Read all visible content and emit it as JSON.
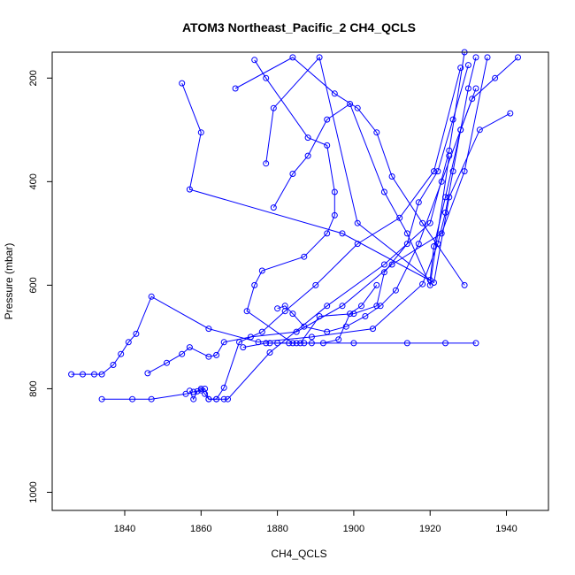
{
  "chart_data": {
    "type": "line",
    "title": "ATOM3 Northeast_Pacific_2 CH4_QCLS",
    "xlabel": "CH4_QCLS",
    "ylabel": "Pressure (mbar)",
    "xlim": [
      1821,
      1951
    ],
    "ylim": [
      1035,
      150
    ],
    "y_reversed": true,
    "x_ticks": [
      1840,
      1860,
      1880,
      1900,
      1920,
      1940
    ],
    "y_ticks": [
      200,
      400,
      600,
      800,
      1000
    ],
    "series_color": "#0000ff",
    "series": [
      {
        "x": [
          1826,
          1829,
          1832,
          1834,
          1837,
          1839,
          1841,
          1843,
          1847,
          1862,
          1875,
          1889,
          1905,
          1918,
          1922,
          1924,
          1926,
          1928,
          1930,
          1932
        ],
        "y": [
          772,
          772,
          772,
          772,
          754,
          733,
          710,
          694,
          622,
          684,
          710,
          700,
          684,
          598,
          520,
          460,
          380,
          300,
          220,
          160
        ]
      },
      {
        "x": [
          1834,
          1842,
          1847,
          1856,
          1858,
          1860,
          1861,
          1862,
          1864,
          1866,
          1867,
          1878,
          1893,
          1908,
          1920,
          1925,
          1929
        ],
        "y": [
          820,
          820,
          820,
          810,
          806,
          803,
          800,
          820,
          820,
          820,
          820,
          730,
          640,
          560,
          480,
          340,
          150
        ]
      },
      {
        "x": [
          1846,
          1851,
          1855,
          1857,
          1862,
          1864,
          1866,
          1873,
          1885,
          1897,
          1910,
          1923,
          1929,
          1935
        ],
        "y": [
          770,
          750,
          733,
          720,
          738,
          735,
          710,
          700,
          690,
          640,
          560,
          500,
          380,
          160
        ]
      },
      {
        "x": [
          1857,
          1858,
          1859,
          1860,
          1861,
          1862,
          1864,
          1866,
          1870,
          1876,
          1882,
          1890,
          1901,
          1912,
          1921,
          1928
        ],
        "y": [
          804,
          820,
          805,
          800,
          810,
          820,
          820,
          798,
          710,
          690,
          650,
          600,
          520,
          470,
          380,
          180
        ]
      },
      {
        "x": [
          1855,
          1860,
          1857,
          1897,
          1921,
          1925,
          1933,
          1941
        ],
        "y": [
          210,
          305,
          415,
          500,
          595,
          430,
          300,
          268
        ]
      },
      {
        "x": [
          1874,
          1877,
          1888,
          1893,
          1895,
          1895,
          1893,
          1887,
          1876,
          1874,
          1872,
          1884,
          1900,
          1914,
          1924,
          1932
        ],
        "y": [
          165,
          200,
          315,
          330,
          420,
          465,
          500,
          545,
          572,
          600,
          650,
          712,
          712,
          712,
          712,
          712
        ]
      },
      {
        "x": [
          1869,
          1884,
          1895,
          1901,
          1906,
          1910,
          1918,
          1929
        ],
        "y": [
          220,
          160,
          230,
          258,
          305,
          390,
          480,
          600
        ]
      },
      {
        "x": [
          1877,
          1879,
          1891,
          1901,
          1920,
          1921,
          1924,
          1928,
          1931,
          1937,
          1943
        ],
        "y": [
          365,
          258,
          160,
          480,
          590,
          525,
          430,
          300,
          240,
          200,
          160
        ]
      },
      {
        "x": [
          1871,
          1877,
          1886,
          1891,
          1900,
          1906,
          1908,
          1914,
          1917,
          1922,
          1926,
          1930
        ],
        "y": [
          720,
          712,
          712,
          660,
          655,
          640,
          575,
          520,
          440,
          380,
          280,
          175
        ]
      },
      {
        "x": [
          1879,
          1884,
          1888,
          1893,
          1899,
          1908,
          1914,
          1920,
          1925
        ],
        "y": [
          450,
          385,
          350,
          280,
          250,
          420,
          500,
          600,
          350
        ]
      },
      {
        "x": [
          1878,
          1880,
          1883,
          1885,
          1887,
          1889,
          1892,
          1896,
          1899,
          1902,
          1906
        ],
        "y": [
          712,
          712,
          712,
          712,
          712,
          712,
          712,
          705,
          655,
          640,
          600
        ]
      },
      {
        "x": [
          1880,
          1882,
          1884,
          1887,
          1893,
          1898,
          1903,
          1907,
          1911,
          1917,
          1923,
          1932
        ],
        "y": [
          645,
          640,
          655,
          680,
          690,
          680,
          660,
          640,
          610,
          520,
          400,
          220
        ]
      }
    ]
  }
}
